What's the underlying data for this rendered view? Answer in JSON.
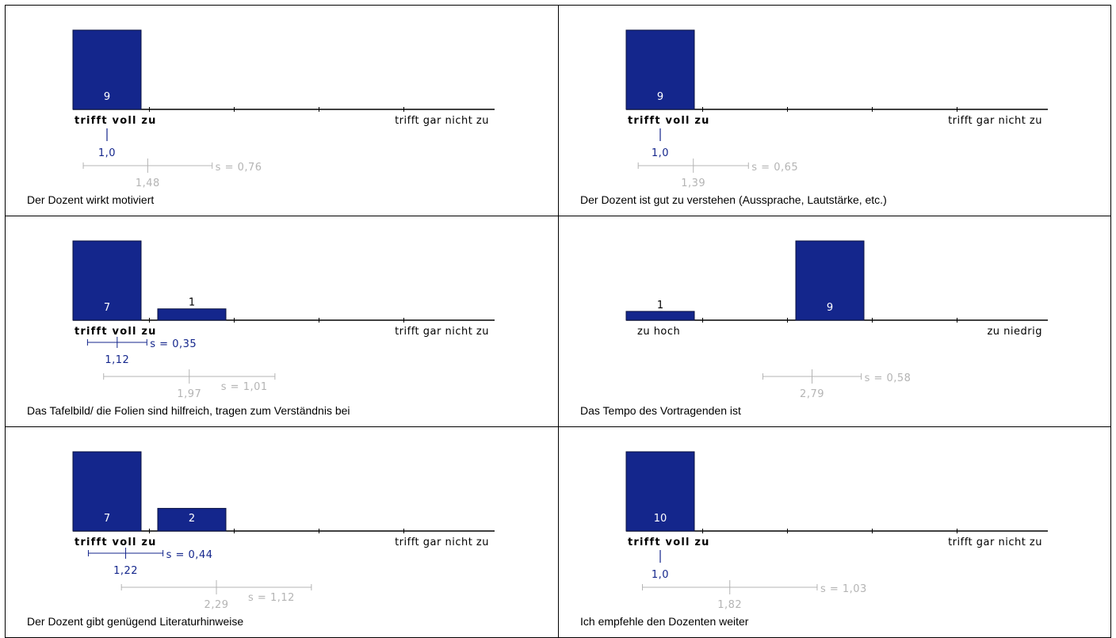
{
  "colors": {
    "bar": "#14268c",
    "bar_stroke": "#0a1240",
    "axis": "#000000",
    "stats_blue": "#14268c",
    "stats_gray": "#b4b4b4"
  },
  "chart_data": [
    {
      "type": "bar",
      "question": "Der Dozent wirkt motiviert",
      "left_label": "trifft voll zu",
      "right_label": "trifft  gar nicht zu",
      "left_bold": true,
      "categories": [
        "1",
        "2",
        "3",
        "4",
        "5"
      ],
      "values": [
        9,
        0,
        0,
        0,
        0
      ],
      "ymax": 9,
      "median": "1,0",
      "mean": "1,48",
      "s": "s = 0,76",
      "mean_value": 1.48,
      "sd": 0.76
    },
    {
      "type": "bar",
      "question": "Der Dozent ist gut zu verstehen (Aussprache, Lautstärke, etc.)",
      "left_label": "trifft voll zu",
      "right_label": "trifft  gar nicht zu",
      "left_bold": true,
      "categories": [
        "1",
        "2",
        "3",
        "4",
        "5"
      ],
      "values": [
        9,
        0,
        0,
        0,
        0
      ],
      "ymax": 9,
      "median": "1,0",
      "mean": "1,39",
      "s": "s = 0,65",
      "mean_value": 1.39,
      "sd": 0.65
    },
    {
      "type": "bar",
      "question": "Das Tafelbild/ die Folien sind hilfreich, tragen zum Verständnis bei",
      "left_label": "trifft voll zu",
      "right_label": "trifft  gar nicht zu",
      "left_bold": true,
      "categories": [
        "1",
        "2",
        "3",
        "4",
        "5"
      ],
      "values": [
        7,
        1,
        0,
        0,
        0
      ],
      "ymax": 7,
      "local_mean": "1,12",
      "local_mean_value": 1.12,
      "local_s": "s = 0,35",
      "local_sd": 0.35,
      "mean": "1,97",
      "s": "s = 1,01",
      "mean_value": 1.97,
      "sd": 1.01
    },
    {
      "type": "bar",
      "question": "Das Tempo des Vortragenden ist",
      "left_label": "zu hoch",
      "right_label": "zu niedrig",
      "left_bold": false,
      "categories": [
        "1",
        "2",
        "3",
        "4",
        "5"
      ],
      "values": [
        1,
        0,
        9,
        0,
        0
      ],
      "ymax": 9,
      "mean": "2,79",
      "s": "s = 0,58",
      "mean_value": 2.79,
      "sd": 0.58
    },
    {
      "type": "bar",
      "question": "Der Dozent gibt genügend Literaturhinweise",
      "left_label": "trifft voll zu",
      "right_label": "trifft  gar nicht zu",
      "left_bold": true,
      "categories": [
        "1",
        "2",
        "3",
        "4",
        "5"
      ],
      "values": [
        7,
        2,
        0,
        0,
        0
      ],
      "ymax": 7,
      "local_mean": "1,22",
      "local_mean_value": 1.22,
      "local_s": "s = 0,44",
      "local_sd": 0.44,
      "mean": "2,29",
      "s": "s = 1,12",
      "mean_value": 2.29,
      "sd": 1.12
    },
    {
      "type": "bar",
      "question": "Ich empfehle den Dozenten weiter",
      "left_label": "trifft voll zu",
      "right_label": "trifft  gar nicht zu",
      "left_bold": true,
      "categories": [
        "1",
        "2",
        "3",
        "4",
        "5"
      ],
      "values": [
        10,
        0,
        0,
        0,
        0
      ],
      "ymax": 10,
      "median": "1,0",
      "mean": "1,82",
      "s": "s = 1,03",
      "mean_value": 1.82,
      "sd": 1.03
    }
  ]
}
